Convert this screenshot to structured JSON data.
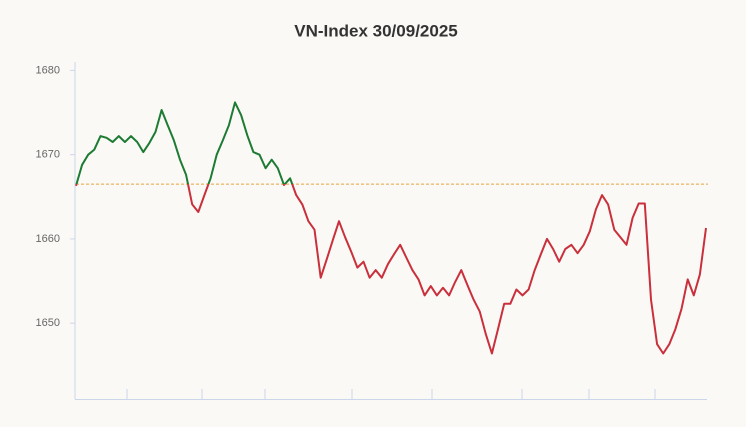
{
  "chart_data": {
    "type": "line",
    "title": "VN-Index 30/09/2025",
    "values": [
      1666.3,
      1668.8,
      1670,
      1670.6,
      1672.2,
      1672,
      1671.5,
      1672.2,
      1671.5,
      1672.2,
      1671.5,
      1670.3,
      1671.4,
      1672.7,
      1675.3,
      1673.5,
      1671.7,
      1669.4,
      1667.6,
      1664.1,
      1663.2,
      1665.2,
      1667.2,
      1670,
      1671.7,
      1673.5,
      1676.2,
      1674.7,
      1672.3,
      1670.3,
      1670,
      1668.4,
      1669.4,
      1668.4,
      1666.4,
      1667.2,
      1665.2,
      1664.1,
      1662.1,
      1661.1,
      1655.4,
      1657.6,
      1659.9,
      1662.1,
      1660.2,
      1658.5,
      1656.6,
      1657.3,
      1655.4,
      1656.3,
      1655.4,
      1657,
      1658.2,
      1659.3,
      1657.8,
      1656.3,
      1655.2,
      1653.3,
      1654.4,
      1653.3,
      1654.2,
      1653.3,
      1654.9,
      1656.3,
      1654.5,
      1652.8,
      1651.4,
      1648.7,
      1646.4,
      1649.3,
      1652.3,
      1652.3,
      1654,
      1653.3,
      1654,
      1656.3,
      1658.2,
      1660,
      1658.8,
      1657.3,
      1658.8,
      1659.3,
      1658.3,
      1659.3,
      1660.9,
      1663.5,
      1665.2,
      1664.1,
      1661.1,
      1660.2,
      1659.3,
      1662.5,
      1664.2,
      1664.2,
      1652.8,
      1647.5,
      1646.4,
      1647.5,
      1649.3,
      1651.7,
      1655.2,
      1653.3,
      1655.8,
      1661.3
    ],
    "reference": 1666.5,
    "reference_color": "#e8a33d",
    "color_above": "#1e7b34",
    "color_below": "#c9303c",
    "ylim": [
      1641,
      1681
    ],
    "yticks": [
      1650,
      1660,
      1670,
      1680
    ],
    "grid": false
  }
}
